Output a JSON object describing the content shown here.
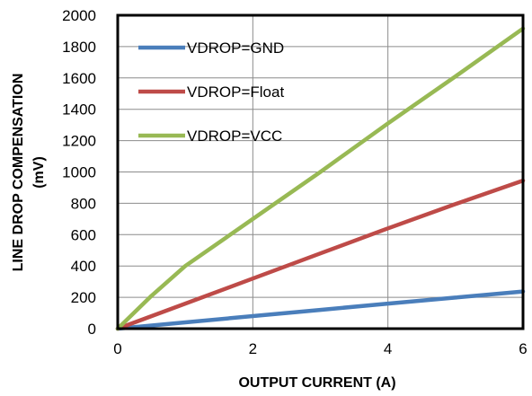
{
  "chart_data": {
    "type": "line",
    "xlabel": "OUTPUT  CURRENT  (A)",
    "ylabel_line1": "LINE  DROP  COMPENSATION",
    "ylabel_line2": "(mV)",
    "xlim": [
      0,
      6
    ],
    "ylim": [
      0,
      2000
    ],
    "x_ticks": [
      0,
      2,
      4,
      6
    ],
    "y_ticks": [
      0,
      200,
      400,
      600,
      800,
      1000,
      1200,
      1400,
      1600,
      1800,
      2000
    ],
    "grid": true,
    "legend_position": "top-left",
    "series": [
      {
        "name": "VDROP=GND",
        "color": "#4a7ebb",
        "x": [
          0,
          1,
          2,
          3,
          4,
          5,
          6
        ],
        "y": [
          0,
          40,
          80,
          120,
          160,
          198,
          237
        ]
      },
      {
        "name": "VDROP=Float",
        "color": "#be4b48",
        "x": [
          0,
          1,
          2,
          3,
          4,
          5,
          6
        ],
        "y": [
          0,
          160,
          320,
          480,
          640,
          795,
          945
        ]
      },
      {
        "name": "VDROP=VCC",
        "color": "#98b954",
        "x": [
          0,
          0.5,
          1,
          2,
          3,
          4,
          5,
          6
        ],
        "y": [
          0,
          210,
          400,
          700,
          1000,
          1310,
          1610,
          1915
        ]
      }
    ]
  }
}
